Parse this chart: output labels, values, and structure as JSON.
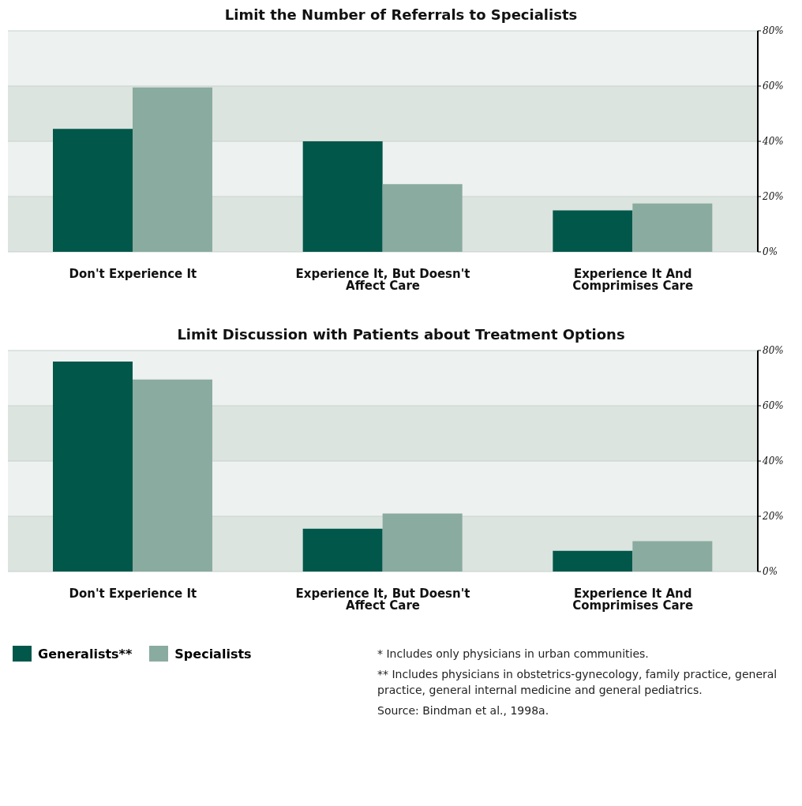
{
  "chart_data": [
    {
      "type": "bar",
      "title": "Limit the Number of Referrals to Specialists",
      "categories": [
        "Don't Experience It",
        "Experience It, But Doesn't Affect Care",
        "Experience It And Comprimises Care"
      ],
      "series": [
        {
          "color": "#02574b",
          "values": [
            44.5,
            40,
            15
          ]
        },
        {
          "color": "#8aaba0",
          "values": [
            59.5,
            24.5,
            17.5
          ]
        }
      ],
      "ylim": [
        0,
        80
      ],
      "yticks": [
        {
          "value": 0,
          "label": "0%"
        },
        {
          "value": 20,
          "label": "20%"
        },
        {
          "value": 40,
          "label": "40%"
        },
        {
          "value": 60,
          "label": "60%"
        },
        {
          "value": 80,
          "label": "80%"
        }
      ],
      "grid": "y"
    },
    {
      "type": "bar",
      "title": "Limit Discussion with Patients about Treatment Options",
      "categories": [
        "Don't Experience It",
        "Experience It, But Doesn't Affect Care",
        "Experience It And Comprimises Care"
      ],
      "series": [
        {
          "name": "Generalists**",
          "color": "#02574b",
          "values": [
            76,
            15.5,
            7.5
          ]
        },
        {
          "name": "Specialists",
          "color": "#8aaba0",
          "values": [
            69.5,
            21,
            11
          ]
        }
      ],
      "ylim": [
        0,
        80
      ],
      "yticks": [
        {
          "value": 0,
          "label": "0%"
        },
        {
          "value": 20,
          "label": "20%"
        },
        {
          "value": 40,
          "label": "40%"
        },
        {
          "value": 60,
          "label": "60%"
        },
        {
          "value": 80,
          "label": "80%"
        }
      ],
      "grid": "y",
      "legend": "bottom left",
      "annotations": [
        "* Includes only physicians in urban communities.",
        "** Includes physicians in obstetrics-gynecology, family practice, general practice, general internal medicine and general pediatrics.",
        "Source: Bindman et al., 1998a."
      ]
    }
  ]
}
